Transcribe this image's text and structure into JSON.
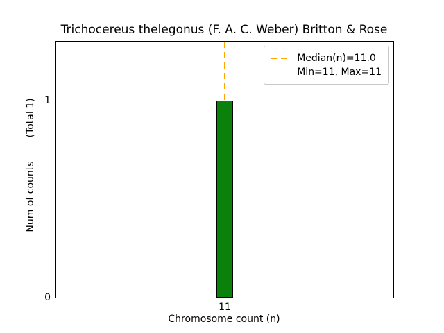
{
  "chart_data": {
    "type": "bar",
    "title": "Trichocereus thelegonus (F. A. C. Weber) Britton & Rose",
    "xlabel": "Chromosome count (n)",
    "ylabel": "Num of counts",
    "ylabel_secondary": "(Total 1)",
    "categories": [
      "11"
    ],
    "values": [
      1
    ],
    "yticks": [
      0,
      1
    ],
    "ytick_labels": [
      "0",
      "1"
    ],
    "ylim": [
      0,
      1.3
    ],
    "grid": false,
    "bar_color": "#0a810a",
    "bar_edge_color": "#000000",
    "median_line": {
      "at_category": "11",
      "color": "#FFA500",
      "style": "dashed"
    },
    "legend": {
      "position": "top-right",
      "entries": [
        {
          "label": "Median(n)=11.0",
          "marker": "dashed-line",
          "color": "#FFA500"
        },
        {
          "label": "Min=11, Max=11",
          "marker": "none",
          "color": null
        }
      ]
    }
  }
}
